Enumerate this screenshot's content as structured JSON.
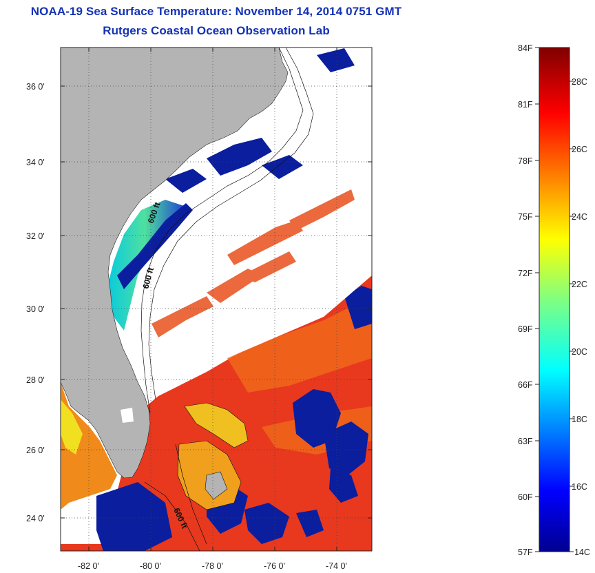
{
  "title": "NOAA-19 Sea Surface Temperature:  November 14, 2014 0751 GMT",
  "subtitle": "Rutgers Coastal Ocean Observation Lab",
  "map": {
    "lat_labels": [
      "36 0'",
      "34 0'",
      "32 0'",
      "30 0'",
      "28 0'",
      "26 0'",
      "24 0'"
    ],
    "lon_labels": [
      "-82 0'",
      "-80 0'",
      "-78 0'",
      "-76 0'",
      "-74 0'"
    ],
    "depth_contour_labels": [
      "600 ft",
      "600 ft",
      "600 ft"
    ],
    "colors": {
      "land": "#b4b4b4",
      "clouds": "#ffffff",
      "warm_sst": "#e8381e",
      "cold_sst": "#0a1e9e"
    }
  },
  "colorbar": {
    "fahrenheit_labels": [
      "84F",
      "81F",
      "78F",
      "75F",
      "72F",
      "69F",
      "66F",
      "63F",
      "60F",
      "57F"
    ],
    "celsius_labels": [
      "28C",
      "26C",
      "24C",
      "22C",
      "20C",
      "18C",
      "16C",
      "14C"
    ],
    "colormap": "jet"
  }
}
